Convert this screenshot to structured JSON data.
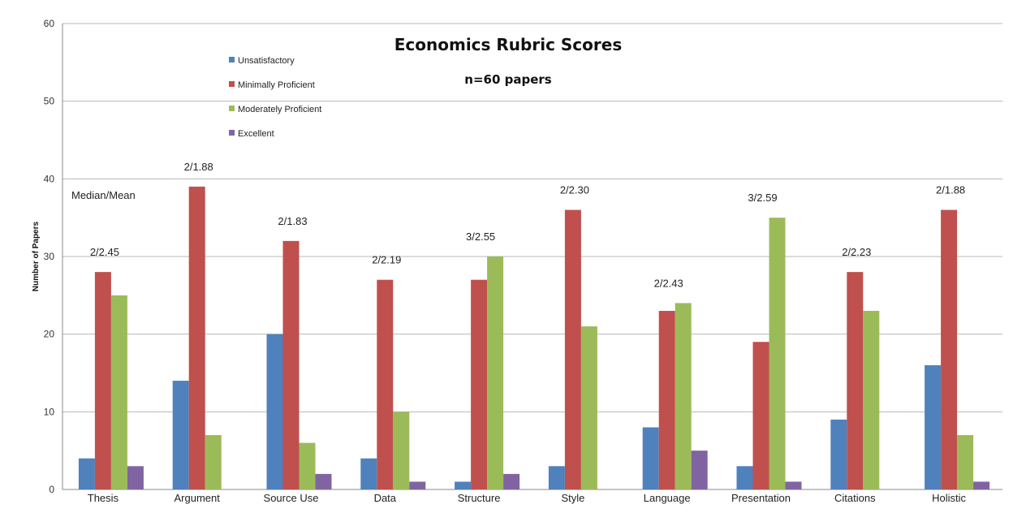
{
  "chart_data": {
    "type": "bar",
    "title": "Economics Rubric Scores",
    "subtitle": "n=60 papers",
    "ylabel": "Number of Papers",
    "xlabel": "",
    "ylim": [
      0,
      60
    ],
    "yticks": [
      0,
      10,
      20,
      30,
      40,
      50,
      60
    ],
    "grid": true,
    "legend_position": "top-left",
    "categories": [
      "Thesis",
      "Argument",
      "Source Use",
      "Data",
      "Structure",
      "Style",
      "Language",
      "Presentation",
      "Citations",
      "Holistic"
    ],
    "series": [
      {
        "name": "Unsatisfactory",
        "color": "#4f81bd",
        "values": [
          4,
          14,
          20,
          4,
          1,
          3,
          8,
          3,
          9,
          16
        ]
      },
      {
        "name": "Minimally Proficient",
        "color": "#c0504d",
        "values": [
          28,
          39,
          32,
          27,
          27,
          36,
          23,
          19,
          28,
          36
        ]
      },
      {
        "name": "Moderately Proficient",
        "color": "#9bbb59",
        "values": [
          25,
          7,
          6,
          10,
          30,
          21,
          24,
          35,
          23,
          7
        ]
      },
      {
        "name": "Excellent",
        "color": "#8064a2",
        "values": [
          3,
          0,
          2,
          1,
          2,
          0,
          5,
          1,
          0,
          1
        ]
      }
    ],
    "annotation_header": "Median/Mean",
    "annotations": [
      "2/2.45",
      "2/1.88",
      "2/1.83",
      "2/2.19",
      "3/2.55",
      "2/2.30",
      "2/2.43",
      "3/2.59",
      "2/2.23",
      "2/1.88"
    ]
  }
}
